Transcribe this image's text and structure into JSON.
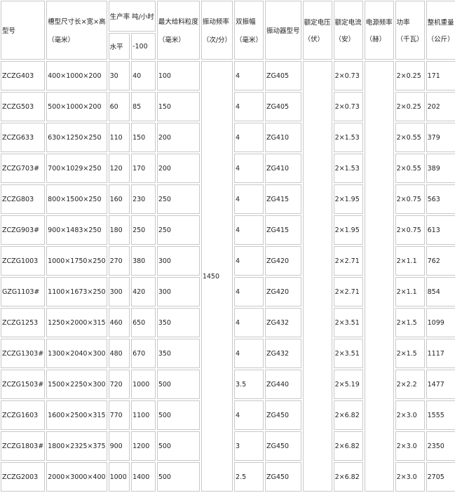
{
  "header": {
    "model": "型号",
    "size": "槽型尺寸长×宽×高",
    "size_unit": "（毫米）",
    "capacity": "生产率 吨/小时",
    "cap_h": "水平",
    "cap_d": "-100",
    "feed": "最大给料粒度",
    "feed_unit": "（毫米）",
    "freq": "振动频率",
    "freq_unit": "（次/分）",
    "amp": "双振幅",
    "amp_unit": "（毫米）",
    "vib": "振动器型号",
    "volt": "额定电压",
    "volt_unit": "（伏）",
    "cur": "额定电流",
    "cur_unit": "（安）",
    "pf": "电源频率",
    "pf_unit": "（赫）",
    "pow": "功率",
    "pow_unit": "（千瓦）",
    "wt": "整机重量",
    "wt_unit": "（公斤）"
  },
  "freq_value": "1450",
  "rows": [
    [
      "ZCZG403",
      "400×1000×200",
      "30",
      "40",
      "100",
      "4",
      "ZG405",
      "2×0.73",
      "2×0.25",
      "171"
    ],
    [
      "ZCZG503",
      "500×1000×200",
      "60",
      "85",
      "150",
      "4",
      "ZG405",
      "2×0.73",
      "2×0.25",
      "202"
    ],
    [
      "ZCZG633",
      "630×1250×250",
      "110",
      "150",
      "200",
      "4",
      "ZG410",
      "2×1.53",
      "2×0.55",
      "379"
    ],
    [
      "ZCZG703#",
      "700×1029×250",
      "120",
      "170",
      "200",
      "4",
      "ZG410",
      "2×1.53",
      "2×0.55",
      "389"
    ],
    [
      "ZCZG803",
      "800×1500×250",
      "160",
      "230",
      "250",
      "4",
      "ZG415",
      "2×1.95",
      "2×0.75",
      "563"
    ],
    [
      "ZCZG903#",
      "900×1483×250",
      "180",
      "250",
      "250",
      "4",
      "ZG415",
      "2×1.95",
      "2×0.75",
      "613"
    ],
    [
      "ZCZG1003",
      "1000×1750×250",
      "270",
      "380",
      "300",
      "4",
      "ZG420",
      "2×2.71",
      "2×1.1",
      "762"
    ],
    [
      "GZG1103#",
      "1100×1673×250",
      "300",
      "420",
      "300",
      "4",
      "ZG420",
      "2×2.71",
      "2×1.1",
      "854"
    ],
    [
      "ZCZG1253",
      "1250×2000×315",
      "460",
      "650",
      "350",
      "4",
      "ZG432",
      "2×3.51",
      "2×1.5",
      "1099"
    ],
    [
      "ZCZG1303#",
      "1300×2040×300",
      "480",
      "670",
      "350",
      "4",
      "ZG432",
      "2×3.51",
      "2×1.5",
      "1117"
    ],
    [
      "ZCZG1503#",
      "1500×2250×300",
      "720",
      "1000",
      "500",
      "3.5",
      "ZG440",
      "2×5.19",
      "2×2.2",
      "1477"
    ],
    [
      "ZCZG1603",
      "1600×2500×315",
      "770",
      "1100",
      "500",
      "4",
      "ZG450",
      "2×6.82",
      "2×3.0",
      "1555"
    ],
    [
      "ZCZG1803#",
      "1800×2325×375",
      "900",
      "1200",
      "500",
      "3",
      "ZG450",
      "2×6.82",
      "2×3.0",
      "2350"
    ],
    [
      "ZCZG2003",
      "2000×3000×400",
      "1000",
      "1400",
      "500",
      "2.5",
      "ZG450",
      "2×6.82",
      "2×3.0",
      "2705"
    ]
  ]
}
